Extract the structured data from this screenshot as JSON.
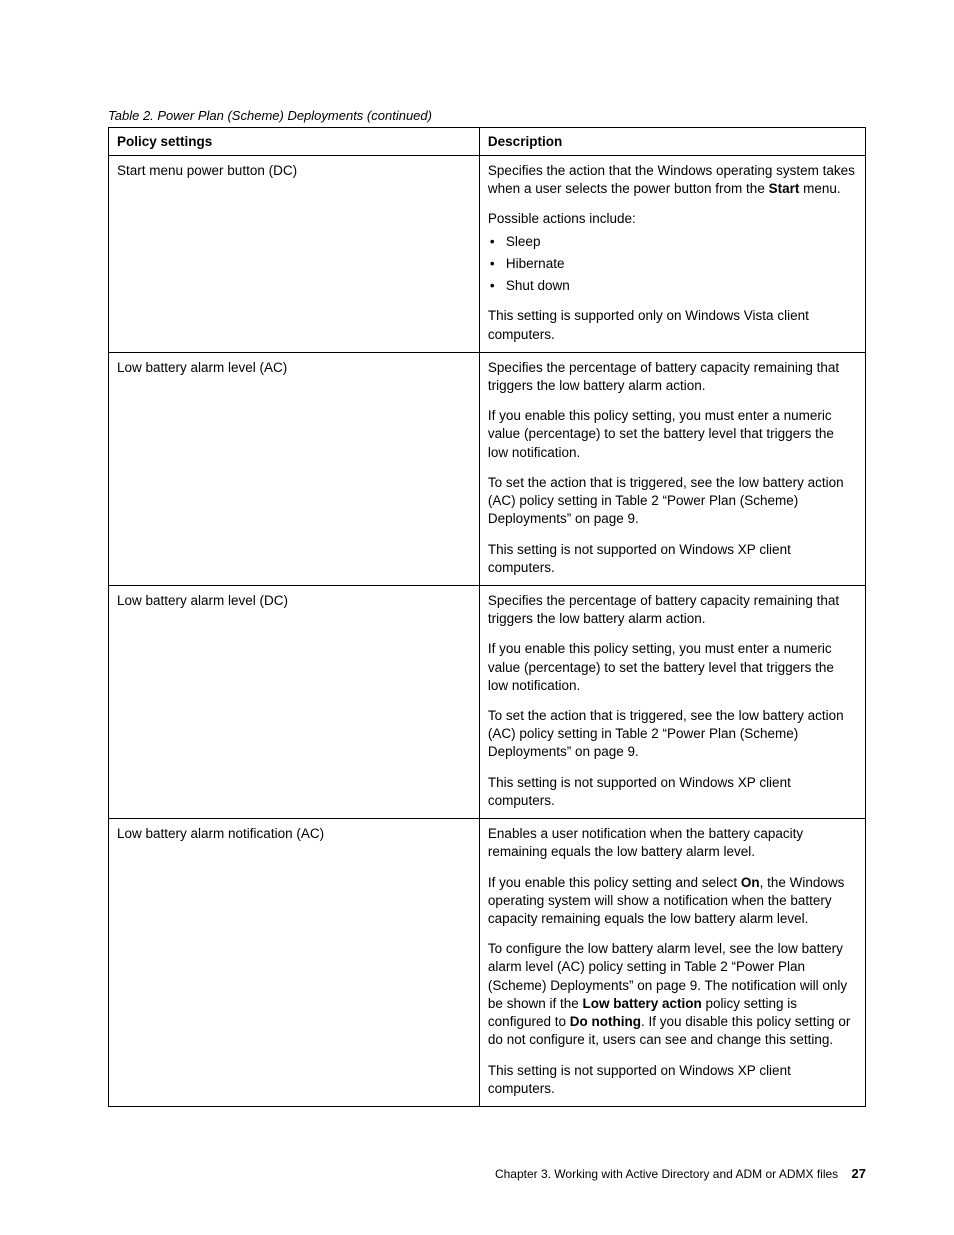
{
  "caption": "Table 2.  Power Plan (Scheme) Deployments (continued)",
  "headers": {
    "col1": "Policy settings",
    "col2": "Description"
  },
  "rows": [
    {
      "col1": "Start menu power button (DC)",
      "col2": {
        "p1_pre": "Specifies the action that the Windows operating system takes when a user selects the power button from the ",
        "p1_bold": "Start",
        "p1_post": " menu.",
        "p2": "Possible actions include:",
        "li1": "Sleep",
        "li2": "Hibernate",
        "li3": "Shut down",
        "p3": "This setting is supported only on Windows Vista client computers."
      }
    },
    {
      "col1": "Low battery alarm level (AC)",
      "col2": {
        "p1": "Specifies the percentage of battery capacity remaining that triggers the low battery alarm action.",
        "p2": "If you enable this policy setting, you must enter a numeric value (percentage) to set the battery level that triggers the low notification.",
        "p3": "To set the action that is triggered, see the low battery action (AC) policy setting in Table 2 “Power Plan (Scheme) Deployments” on page 9.",
        "p4": "This setting is not supported on Windows XP client computers."
      }
    },
    {
      "col1": "Low battery alarm level (DC)",
      "col2": {
        "p1": "Specifies the percentage of battery capacity remaining that triggers the low battery alarm action.",
        "p2": "If you enable this policy setting, you must enter a numeric value (percentage) to set the battery level that triggers the low notification.",
        "p3": "To set the action that is triggered, see the low battery action (AC) policy setting in Table 2 “Power Plan (Scheme) Deployments” on page 9.",
        "p4": "This setting is not supported on Windows XP client computers."
      }
    },
    {
      "col1": "Low battery alarm notification (AC)",
      "col2": {
        "p1": "Enables a user notification when the battery capacity remaining equals the low battery alarm level.",
        "p2_pre": "If you enable this policy setting and select ",
        "p2_bold": "On",
        "p2_post": ", the Windows operating system will show a notification when the battery capacity remaining equals the low battery alarm level.",
        "p3_a": "To configure the low battery alarm level, see the low battery alarm level (AC) policy setting in Table 2 “Power Plan (Scheme) Deployments” on page 9. The notification will only be shown if the ",
        "p3_b1": "Low battery action",
        "p3_b": " policy setting is configured to ",
        "p3_b2": "Do nothing",
        "p3_c": ". If you disable this policy setting or do not configure it, users can see and change this setting.",
        "p4": "This setting is not supported on Windows XP client computers."
      }
    }
  ],
  "footer": {
    "chapter": "Chapter 3. Working with Active Directory and ADM or ADMX files",
    "page": "27"
  }
}
